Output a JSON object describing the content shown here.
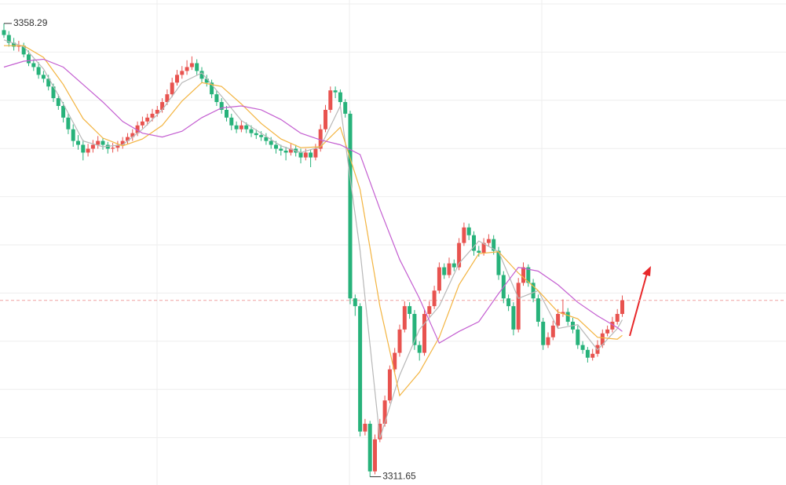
{
  "chart_data": {
    "type": "candlestick",
    "ylim": [
      3310.8,
      3360.7
    ],
    "up_color": "#e8534f",
    "down_color": "#27b27a",
    "grid": true,
    "max_label": {
      "value": 3358.29,
      "label": "3358.29"
    },
    "min_label": {
      "value": 3311.65,
      "label": "3311.65"
    },
    "ohlc": [
      [
        3357.6,
        3358.29,
        3356.8,
        3357.1
      ],
      [
        3357.1,
        3357.5,
        3355.9,
        3356.3
      ],
      [
        3356.3,
        3356.8,
        3355.5,
        3355.9
      ],
      [
        3355.9,
        3356.5,
        3355.4,
        3356.0
      ],
      [
        3356.0,
        3356.3,
        3354.8,
        3355.1
      ],
      [
        3355.1,
        3355.5,
        3353.9,
        3354.2
      ],
      [
        3354.2,
        3354.6,
        3353.4,
        3353.8
      ],
      [
        3353.8,
        3354.3,
        3352.6,
        3353.0
      ],
      [
        3353.0,
        3353.4,
        3352.2,
        3352.6
      ],
      [
        3352.6,
        3353.0,
        3351.4,
        3351.8
      ],
      [
        3351.8,
        3352.1,
        3350.2,
        3350.6
      ],
      [
        3350.6,
        3351.0,
        3349.4,
        3349.8
      ],
      [
        3349.8,
        3350.2,
        3348.1,
        3348.6
      ],
      [
        3348.6,
        3349.0,
        3346.9,
        3347.4
      ],
      [
        3347.4,
        3347.9,
        3345.6,
        3346.2
      ],
      [
        3346.2,
        3346.8,
        3345.3,
        3345.8
      ],
      [
        3345.8,
        3346.3,
        3344.2,
        3345.0
      ],
      [
        3345.0,
        3345.9,
        3344.6,
        3345.4
      ],
      [
        3345.4,
        3346.3,
        3345.0,
        3345.8
      ],
      [
        3345.8,
        3346.7,
        3345.4,
        3346.2
      ],
      [
        3346.2,
        3346.5,
        3345.3,
        3345.8
      ],
      [
        3345.8,
        3346.1,
        3344.9,
        3345.4
      ],
      [
        3345.4,
        3346.0,
        3345.0,
        3345.5
      ],
      [
        3345.5,
        3346.2,
        3345.1,
        3345.8
      ],
      [
        3345.8,
        3346.6,
        3345.4,
        3346.2
      ],
      [
        3346.2,
        3347.0,
        3345.9,
        3346.6
      ],
      [
        3346.6,
        3347.4,
        3346.2,
        3347.0
      ],
      [
        3347.0,
        3348.2,
        3346.7,
        3347.8
      ],
      [
        3347.8,
        3348.7,
        3347.5,
        3348.2
      ],
      [
        3348.2,
        3349.0,
        3347.8,
        3348.6
      ],
      [
        3348.6,
        3349.5,
        3348.2,
        3349.0
      ],
      [
        3349.0,
        3349.8,
        3348.7,
        3349.4
      ],
      [
        3349.4,
        3350.6,
        3349.1,
        3350.2
      ],
      [
        3350.2,
        3351.5,
        3349.9,
        3351.0
      ],
      [
        3351.0,
        3352.7,
        3350.7,
        3352.2
      ],
      [
        3352.2,
        3353.5,
        3351.9,
        3353.0
      ],
      [
        3353.0,
        3353.9,
        3352.6,
        3353.4
      ],
      [
        3353.4,
        3354.5,
        3353.0,
        3353.8
      ],
      [
        3353.8,
        3354.9,
        3353.5,
        3354.2
      ],
      [
        3354.2,
        3354.6,
        3353.0,
        3353.4
      ],
      [
        3353.4,
        3353.8,
        3352.2,
        3352.6
      ],
      [
        3352.6,
        3353.0,
        3351.8,
        3352.2
      ],
      [
        3352.2,
        3352.5,
        3350.6,
        3351.0
      ],
      [
        3351.0,
        3351.4,
        3349.8,
        3350.2
      ],
      [
        3350.2,
        3350.6,
        3349.0,
        3349.4
      ],
      [
        3349.4,
        3349.8,
        3348.2,
        3348.6
      ],
      [
        3348.6,
        3349.0,
        3347.3,
        3347.8
      ],
      [
        3347.8,
        3348.2,
        3347.0,
        3347.4
      ],
      [
        3347.4,
        3348.3,
        3347.1,
        3347.8
      ],
      [
        3347.8,
        3348.1,
        3347.0,
        3347.4
      ],
      [
        3347.4,
        3347.8,
        3346.6,
        3347.0
      ],
      [
        3347.0,
        3347.4,
        3346.4,
        3346.8
      ],
      [
        3346.8,
        3347.2,
        3346.2,
        3346.6
      ],
      [
        3346.6,
        3347.0,
        3345.8,
        3346.2
      ],
      [
        3346.2,
        3346.6,
        3345.4,
        3345.8
      ],
      [
        3345.8,
        3346.2,
        3344.9,
        3345.4
      ],
      [
        3345.4,
        3345.8,
        3344.7,
        3345.2
      ],
      [
        3345.2,
        3345.6,
        3344.2,
        3345.0
      ],
      [
        3345.0,
        3345.9,
        3344.7,
        3345.4
      ],
      [
        3345.4,
        3345.8,
        3344.6,
        3345.0
      ],
      [
        3345.0,
        3345.4,
        3343.9,
        3344.5
      ],
      [
        3344.5,
        3345.4,
        3344.2,
        3345.0
      ],
      [
        3345.0,
        3345.3,
        3343.5,
        3344.5
      ],
      [
        3344.5,
        3345.9,
        3344.2,
        3345.4
      ],
      [
        3345.4,
        3347.9,
        3345.1,
        3347.4
      ],
      [
        3347.4,
        3349.9,
        3347.1,
        3349.4
      ],
      [
        3349.4,
        3351.8,
        3349.1,
        3351.4
      ],
      [
        3351.4,
        3351.8,
        3350.6,
        3351.2
      ],
      [
        3351.2,
        3351.5,
        3349.8,
        3350.2
      ],
      [
        3350.2,
        3350.5,
        3348.6,
        3349.0
      ],
      [
        3349.0,
        3349.3,
        3329.4,
        3330.0
      ],
      [
        3330.0,
        3330.4,
        3328.2,
        3329.2
      ],
      [
        3329.2,
        3329.5,
        3315.8,
        3316.3
      ],
      [
        3316.3,
        3317.6,
        3315.9,
        3317.1
      ],
      [
        3317.1,
        3317.4,
        3311.65,
        3312.2
      ],
      [
        3312.2,
        3316.0,
        3311.9,
        3315.5
      ],
      [
        3315.5,
        3317.6,
        3315.2,
        3317.1
      ],
      [
        3317.1,
        3320.0,
        3316.8,
        3319.5
      ],
      [
        3319.5,
        3323.1,
        3319.2,
        3322.7
      ],
      [
        3322.7,
        3324.9,
        3322.4,
        3324.4
      ],
      [
        3324.4,
        3327.3,
        3324.0,
        3326.8
      ],
      [
        3326.8,
        3329.7,
        3326.5,
        3329.2
      ],
      [
        3329.2,
        3329.6,
        3327.9,
        3328.4
      ],
      [
        3328.4,
        3328.8,
        3324.7,
        3325.2
      ],
      [
        3325.2,
        3325.6,
        3323.6,
        3324.4
      ],
      [
        3324.4,
        3328.9,
        3324.1,
        3328.4
      ],
      [
        3328.4,
        3329.7,
        3328.1,
        3329.2
      ],
      [
        3329.2,
        3331.3,
        3328.9,
        3330.8
      ],
      [
        3330.8,
        3333.7,
        3330.5,
        3333.2
      ],
      [
        3333.2,
        3333.6,
        3332.0,
        3332.4
      ],
      [
        3332.4,
        3334.2,
        3332.1,
        3333.6
      ],
      [
        3333.6,
        3334.0,
        3332.8,
        3333.2
      ],
      [
        3333.2,
        3336.2,
        3332.9,
        3335.7
      ],
      [
        3335.7,
        3337.8,
        3335.4,
        3337.3
      ],
      [
        3337.3,
        3337.7,
        3336.0,
        3336.5
      ],
      [
        3336.5,
        3336.9,
        3334.4,
        3334.9
      ],
      [
        3334.9,
        3335.4,
        3334.3,
        3334.7
      ],
      [
        3334.7,
        3336.2,
        3334.4,
        3335.7
      ],
      [
        3335.7,
        3336.6,
        3335.4,
        3336.1
      ],
      [
        3336.1,
        3336.5,
        3334.5,
        3334.9
      ],
      [
        3334.9,
        3335.3,
        3331.9,
        3332.4
      ],
      [
        3332.4,
        3332.8,
        3329.5,
        3330.0
      ],
      [
        3330.0,
        3330.4,
        3328.7,
        3329.2
      ],
      [
        3329.2,
        3329.6,
        3326.2,
        3326.8
      ],
      [
        3326.8,
        3332.1,
        3326.5,
        3331.6
      ],
      [
        3331.6,
        3333.7,
        3331.3,
        3333.2
      ],
      [
        3333.2,
        3333.5,
        3331.2,
        3331.6
      ],
      [
        3331.6,
        3332.0,
        3329.6,
        3330.0
      ],
      [
        3330.0,
        3330.4,
        3327.1,
        3327.6
      ],
      [
        3327.6,
        3328.0,
        3324.7,
        3325.2
      ],
      [
        3325.2,
        3326.5,
        3324.9,
        3326.0
      ],
      [
        3326.0,
        3327.7,
        3325.7,
        3327.2
      ],
      [
        3327.2,
        3328.9,
        3326.9,
        3328.4
      ],
      [
        3328.4,
        3329.9,
        3328.1,
        3328.6
      ],
      [
        3328.6,
        3329.0,
        3327.2,
        3327.6
      ],
      [
        3327.6,
        3328.0,
        3326.4,
        3326.8
      ],
      [
        3326.8,
        3327.2,
        3324.8,
        3325.2
      ],
      [
        3325.2,
        3325.6,
        3324.3,
        3324.7
      ],
      [
        3324.7,
        3325.0,
        3323.4,
        3323.9
      ],
      [
        3323.9,
        3324.8,
        3323.6,
        3324.3
      ],
      [
        3324.3,
        3325.7,
        3324.0,
        3325.2
      ],
      [
        3325.2,
        3326.8,
        3324.9,
        3326.4
      ],
      [
        3326.4,
        3327.2,
        3326.1,
        3326.8
      ],
      [
        3326.8,
        3328.1,
        3326.5,
        3327.6
      ],
      [
        3327.6,
        3328.9,
        3327.3,
        3328.4
      ],
      [
        3328.4,
        3330.3,
        3328.1,
        3329.8
      ]
    ],
    "series": [
      {
        "color": "#b8b8b8",
        "x": [
          0,
          4,
          8,
          12,
          16,
          20,
          24,
          28,
          32,
          36,
          40,
          44,
          48,
          52,
          56,
          60,
          64,
          68,
          72,
          76,
          80,
          84,
          88,
          92,
          96,
          100,
          104,
          108,
          112,
          116,
          120,
          124,
          125
        ],
        "values": [
          3356.6,
          3355.9,
          3353.6,
          3350.0,
          3346.2,
          3345.6,
          3345.8,
          3347.4,
          3349.4,
          3352.2,
          3353.2,
          3350.8,
          3348.3,
          3347.0,
          3345.7,
          3345.0,
          3345.6,
          3349.8,
          3334.9,
          3315.6,
          3322.1,
          3326.8,
          3329.2,
          3333.6,
          3335.9,
          3334.8,
          3330.0,
          3330.8,
          3326.9,
          3327.3,
          3324.7,
          3326.9,
          3327.8
        ]
      },
      {
        "color": "#f3b440",
        "x": [
          0,
          4,
          8,
          12,
          16,
          20,
          24,
          28,
          32,
          36,
          40,
          44,
          48,
          52,
          56,
          60,
          64,
          68,
          72,
          76,
          80,
          84,
          88,
          92,
          96,
          100,
          104,
          108,
          112,
          116,
          120,
          124,
          125
        ],
        "values": [
          3356.0,
          3356.0,
          3354.8,
          3352.0,
          3348.5,
          3346.5,
          3345.7,
          3346.4,
          3347.8,
          3350.3,
          3352.2,
          3351.8,
          3350.0,
          3348.0,
          3346.4,
          3345.5,
          3345.6,
          3347.6,
          3341.2,
          3329.2,
          3320.0,
          3322.4,
          3326.0,
          3331.4,
          3334.6,
          3334.8,
          3332.6,
          3330.8,
          3328.6,
          3327.9,
          3326.0,
          3325.8,
          3326.2
        ]
      },
      {
        "color": "#c45fd1",
        "x": [
          0,
          4,
          8,
          12,
          16,
          20,
          24,
          28,
          32,
          36,
          40,
          44,
          48,
          52,
          56,
          60,
          64,
          68,
          72,
          76,
          80,
          84,
          88,
          92,
          96,
          100,
          104,
          108,
          112,
          116,
          120,
          124,
          125
        ],
        "values": [
          3353.8,
          3354.4,
          3354.6,
          3353.8,
          3352.0,
          3350.2,
          3348.2,
          3347.0,
          3346.6,
          3347.2,
          3348.6,
          3349.6,
          3349.8,
          3349.4,
          3348.4,
          3347.0,
          3346.3,
          3345.8,
          3344.8,
          3339.2,
          3334.0,
          3330.0,
          3325.4,
          3326.6,
          3327.6,
          3330.5,
          3333.2,
          3332.8,
          3331.4,
          3329.6,
          3328.2,
          3327.0,
          3326.6
        ]
      }
    ]
  }
}
